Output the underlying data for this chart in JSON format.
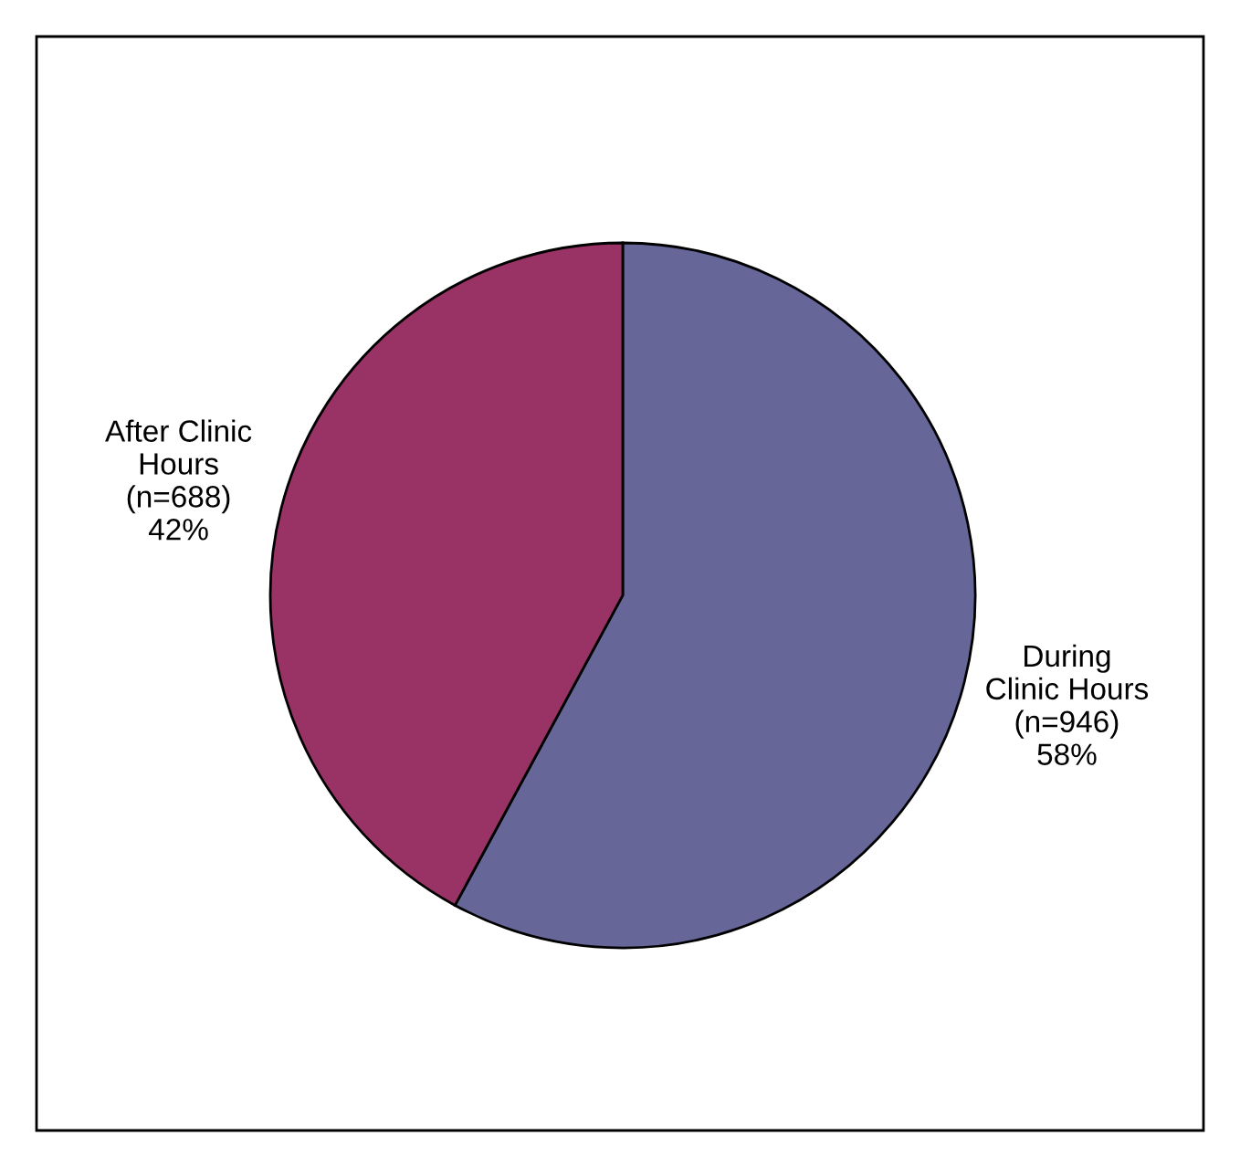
{
  "chart_data": {
    "type": "pie",
    "categories": [
      "During\nClinic Hours",
      "After Clinic\nHours"
    ],
    "values": [
      946,
      688
    ],
    "value_labels": [
      "(n=946)\n58%",
      "(n=688)\n42%"
    ],
    "colors": [
      "#666699",
      "#993366"
    ]
  }
}
